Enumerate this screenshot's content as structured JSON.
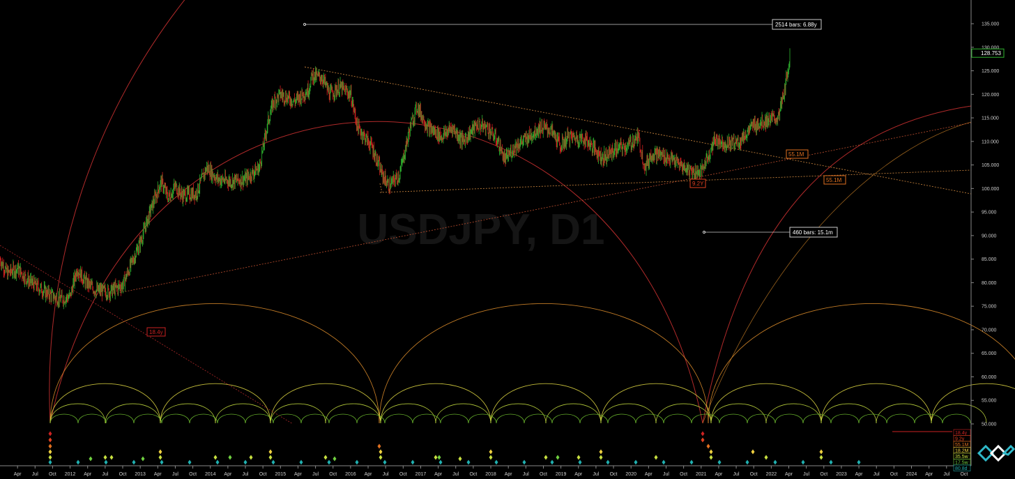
{
  "window": {
    "watermark": "USDJPY, D1"
  },
  "price_scale": {
    "ticks": [
      "135.000",
      "130.000",
      "125.000",
      "120.000",
      "115.000",
      "110.000",
      "105.000",
      "100.000",
      "95.000",
      "90.000",
      "85.000",
      "80.000",
      "75.000",
      "70.000",
      "65.000",
      "60.000",
      "55.000",
      "50.000"
    ],
    "current_price": "128.753",
    "current_price_color": "#1a7f1a"
  },
  "time_axis": {
    "labels": [
      "Apr",
      "Jul",
      "Oct",
      "2012",
      "Apr",
      "Jul",
      "Oct",
      "2013",
      "Apr",
      "Jul",
      "Oct",
      "2014",
      "Apr",
      "Jul",
      "Oct",
      "2015",
      "Apr",
      "Jul",
      "Oct",
      "2016",
      "Apr",
      "Jul",
      "Oct",
      "2017",
      "Apr",
      "Jul",
      "Oct",
      "2018",
      "Apr",
      "Jul",
      "Oct",
      "2019",
      "Apr",
      "Jul",
      "Oct",
      "2020",
      "Apr",
      "Jul",
      "Oct",
      "2021",
      "Apr",
      "Jul",
      "Oct",
      "2022",
      "Apr",
      "Jul",
      "Oct",
      "2023",
      "Apr",
      "Jul",
      "Oct",
      "2024",
      "Apr",
      "Jul",
      "Oct"
    ]
  },
  "annotations": {
    "measure_top": "2514 bars: 6.88y",
    "measure_mid": "460 bars: 15.1m",
    "label_55m_upper": "55.1M",
    "label_55m_lower": "55.1M",
    "label_9y": "9.2Y",
    "label_18y": "18.4y"
  },
  "cycle_legend": [
    {
      "text": "18.4y",
      "color": "#cc2222"
    },
    {
      "text": "9.2y",
      "color": "#e04020"
    },
    {
      "text": "55.1M",
      "color": "#e07020"
    },
    {
      "text": "18.2M",
      "color": "#f0d040"
    },
    {
      "text": "35.5w",
      "color": "#c8e040"
    },
    {
      "text": "17.5w",
      "color": "#70d040"
    },
    {
      "text": "80.8d",
      "color": "#20b0b0"
    }
  ],
  "colors": {
    "up_candle": "#2fb52f",
    "down_candle": "#d62020",
    "arc_red": "#b02a2a",
    "arc_orange": "#d88a2a",
    "arc_yellow": "#d8d040",
    "arc_green": "#70c030",
    "trend_line": "#d28a40"
  },
  "chart_data": {
    "type": "line",
    "title": "USDJPY, D1",
    "xlabel": "",
    "ylabel": "",
    "ylim": [
      48,
      138
    ],
    "x_range": [
      2011.0,
      2024.85
    ],
    "series": [
      {
        "x": [
          2011.0,
          2011.1,
          2011.25,
          2011.4,
          2011.55,
          2011.7,
          2011.85,
          2012.0,
          2012.1,
          2012.2,
          2012.35,
          2012.55,
          2012.75,
          2012.9,
          2013.0,
          2013.15,
          2013.3,
          2013.4,
          2013.5,
          2013.6,
          2013.8,
          2013.95,
          2014.1,
          2014.3,
          2014.5,
          2014.7,
          2014.82,
          2014.9,
          2015.0,
          2015.2,
          2015.4,
          2015.45,
          2015.6,
          2015.7,
          2015.85,
          2016.0,
          2016.1,
          2016.3,
          2016.45,
          2016.55,
          2016.7,
          2016.85,
          2016.95,
          2017.1,
          2017.3,
          2017.45,
          2017.6,
          2017.8,
          2017.95,
          2018.1,
          2018.2,
          2018.35,
          2018.5,
          2018.7,
          2018.85,
          2019.0,
          2019.1,
          2019.35,
          2019.6,
          2019.8,
          2019.95,
          2020.1,
          2020.2,
          2020.3,
          2020.45,
          2020.6,
          2020.75,
          2020.9,
          2021.0,
          2021.2,
          2021.35,
          2021.55,
          2021.75,
          2021.95,
          2022.1,
          2022.2,
          2022.27
        ],
        "values": [
          85.0,
          82.0,
          83.0,
          80.5,
          79.0,
          77.5,
          76.5,
          77.0,
          83.0,
          80.5,
          78.5,
          78.0,
          79.5,
          85.0,
          88.5,
          95.5,
          101.5,
          98.0,
          100.5,
          98.5,
          99.0,
          104.5,
          102.0,
          101.5,
          102.0,
          104.5,
          114.0,
          118.5,
          120.0,
          118.5,
          121.0,
          124.0,
          123.5,
          120.0,
          121.5,
          120.0,
          113.0,
          109.0,
          103.0,
          100.5,
          103.0,
          113.0,
          117.5,
          113.0,
          111.0,
          113.0,
          110.0,
          113.5,
          113.0,
          110.0,
          106.0,
          109.0,
          110.5,
          113.0,
          112.5,
          109.0,
          111.0,
          110.5,
          106.5,
          108.5,
          109.0,
          111.0,
          104.5,
          107.5,
          107.0,
          106.0,
          104.5,
          103.5,
          103.5,
          110.5,
          109.5,
          110.0,
          113.5,
          114.5,
          115.0,
          121.5,
          128.75
        ]
      }
    ]
  }
}
